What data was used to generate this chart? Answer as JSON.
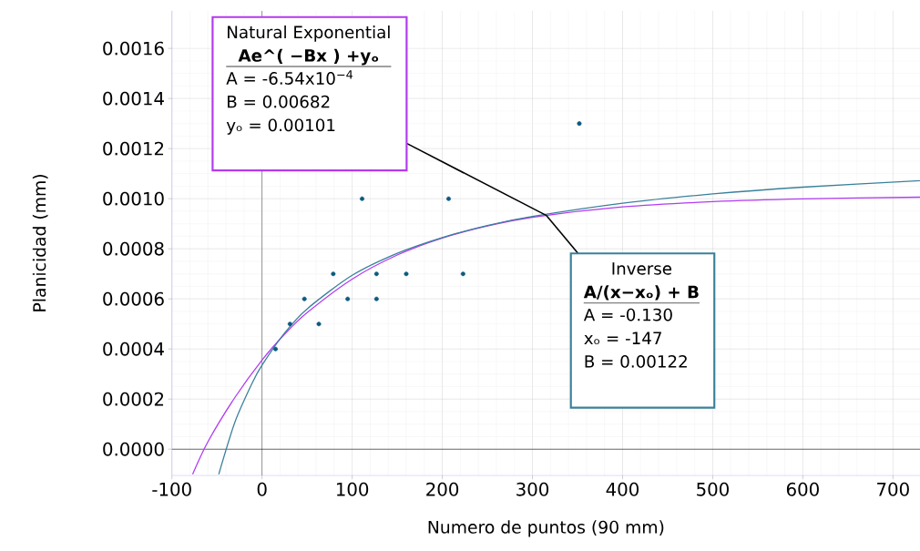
{
  "chart_data": {
    "type": "line",
    "xlabel": "Numero de puntos (90 mm)",
    "ylabel": "Planicidad (mm)",
    "xlim": [
      -100,
      730
    ],
    "ylim": [
      -0.000105,
      0.00175
    ],
    "xticks": [
      -100,
      0,
      100,
      200,
      300,
      400,
      500,
      600,
      700
    ],
    "yticks": [
      {
        "value": 0,
        "label": "0.0000"
      },
      {
        "value": 0.0002,
        "label": "0.0002"
      },
      {
        "value": 0.0004,
        "label": "0.0004"
      },
      {
        "value": 0.0006,
        "label": "0.0006"
      },
      {
        "value": 0.0008,
        "label": "0.0008"
      },
      {
        "value": 0.001,
        "label": "0.0010"
      },
      {
        "value": 0.0012,
        "label": "0.0012"
      },
      {
        "value": 0.0014,
        "label": "0.0014"
      },
      {
        "value": 0.0016,
        "label": "0.0016"
      }
    ],
    "grid": true,
    "series": [
      {
        "type": "scatter",
        "marker": "circle",
        "color": "#0d5a80",
        "x": [
          15,
          31,
          47,
          63,
          79,
          95,
          111,
          127,
          127,
          160,
          207,
          223,
          352
        ],
        "values": [
          0.0004,
          0.0005,
          0.0006,
          0.0005,
          0.0007,
          0.0006,
          0.001,
          0.0007,
          0.0006,
          0.0007,
          0.001,
          0.0007,
          0.0013
        ]
      },
      {
        "color": "#b23bf0",
        "x": [
          -77,
          -60,
          -30,
          0,
          25,
          50,
          100,
          150,
          200,
          250,
          300,
          400,
          500,
          600,
          730
        ],
        "values": [
          -0.0001,
          3e-05,
          0.000207,
          0.000356,
          0.000459,
          0.000545,
          0.000679,
          0.000775,
          0.000843,
          0.000891,
          0.000926,
          0.000967,
          0.000988,
          0.000999,
          0.001006
        ]
      },
      {
        "color": "#3a809b",
        "x": [
          -48,
          -30,
          -10,
          0,
          25,
          50,
          100,
          150,
          200,
          250,
          300,
          400,
          500,
          600,
          730
        ],
        "values": [
          -0.0001,
          0.000109,
          0.000271,
          0.000336,
          0.000464,
          0.00056,
          0.000694,
          0.000782,
          0.000845,
          0.000893,
          0.000929,
          0.000982,
          0.001019,
          0.001046,
          0.001072
        ]
      }
    ],
    "annotations": [
      "Natural Exponential",
      "Ae^( −Bx ) +yₒ",
      "A  = -6.54x10$^{−4}$",
      "B  = 0.00682",
      "yₒ = 0.00101",
      "Inverse",
      "A/(x−xₒ) + B",
      "A  = -0.130",
      "xₒ = -147",
      "B  = 0.00122"
    ]
  }
}
